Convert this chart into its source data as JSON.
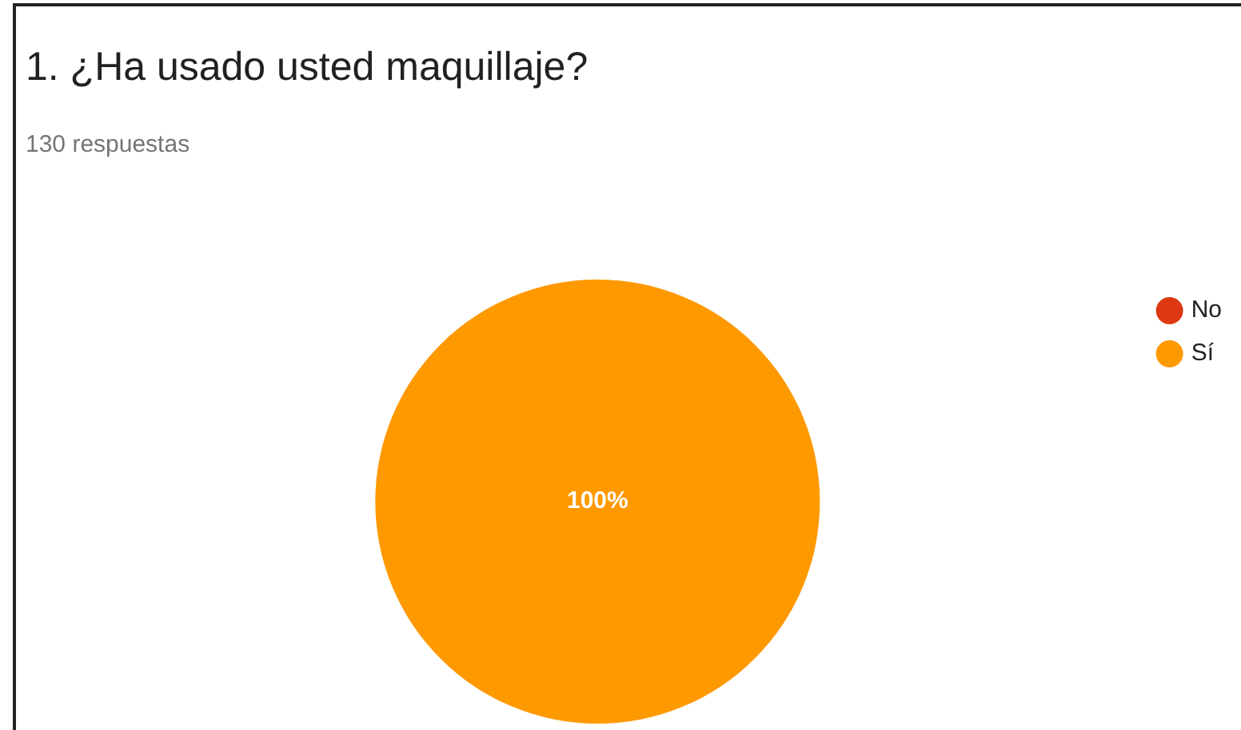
{
  "chart_data": {
    "type": "pie",
    "title": "1. ¿Ha usado usted maquillaje?",
    "subtitle": "130 respuestas",
    "categories": [
      "No",
      "Sí"
    ],
    "values": [
      0,
      100
    ],
    "colors": [
      "#dc3912",
      "#ff9900"
    ],
    "value_labels": [
      null,
      "100%"
    ],
    "legend": "right"
  }
}
